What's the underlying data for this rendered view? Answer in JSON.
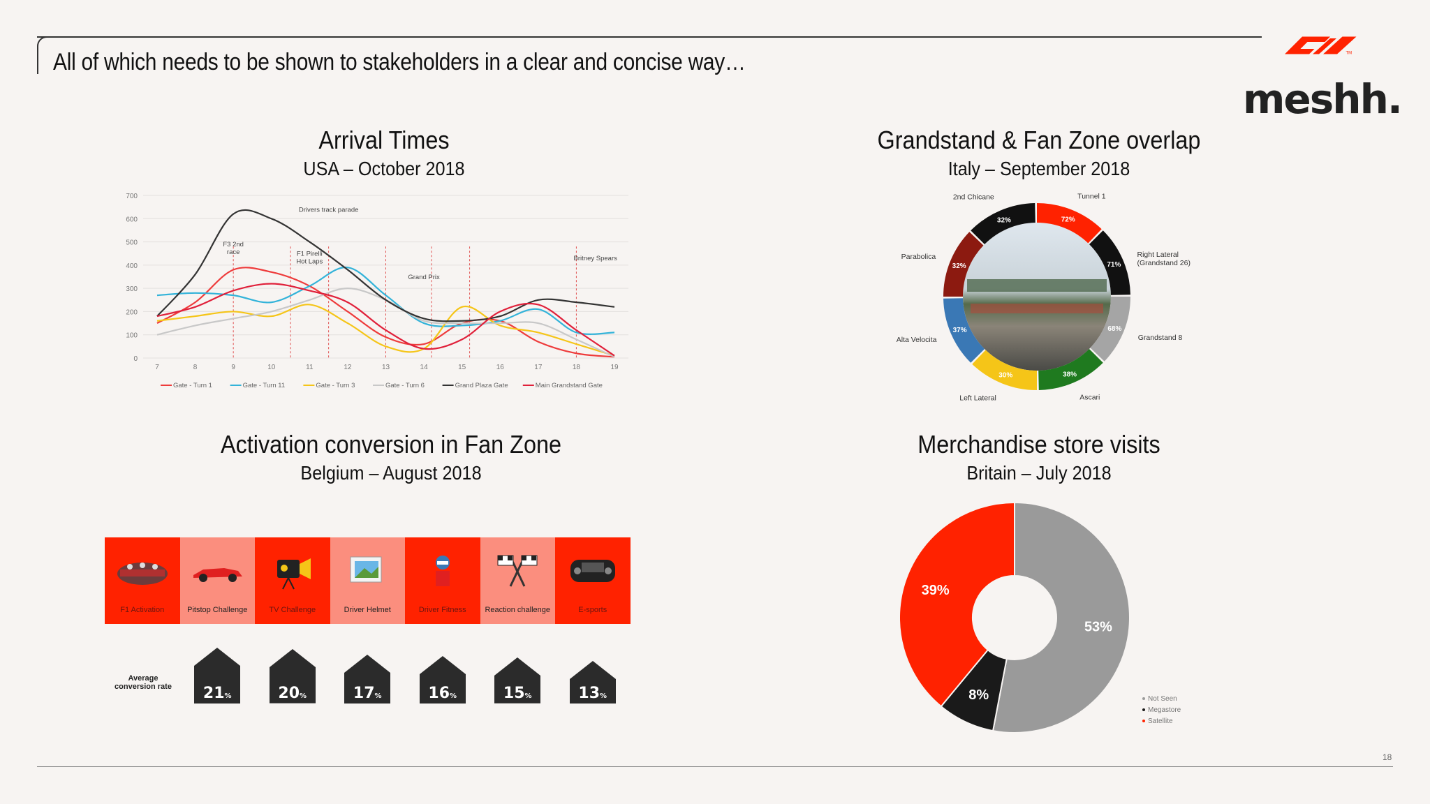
{
  "slide": {
    "title": "All of which needs to be shown to stakeholders in a clear and concise way…",
    "page_number": "18",
    "brand_text": "meshh.",
    "brand_tm": "TM"
  },
  "colors": {
    "accent_red": "#ff2a00",
    "light_red": "#fb8e7e",
    "dark": "#2b2b2b",
    "grey": "#a3a3a3",
    "background": "#f7f4f2"
  },
  "chart_data": [
    {
      "type": "line",
      "title": "Arrival Times",
      "subtitle": "USA – October 2018",
      "x": [
        7,
        8,
        9,
        10,
        11,
        12,
        13,
        14,
        15,
        16,
        17,
        18,
        19
      ],
      "ylim": [
        0,
        700
      ],
      "yticks": [
        0,
        100,
        200,
        300,
        400,
        500,
        600,
        700
      ],
      "grid": true,
      "series": [
        {
          "name": "Gate - Turn 1",
          "color": "#ee3b3b",
          "values": [
            150,
            240,
            380,
            370,
            310,
            200,
            90,
            60,
            150,
            160,
            70,
            20,
            5
          ]
        },
        {
          "name": "Gate - Turn 11",
          "color": "#33b3d9",
          "values": [
            270,
            280,
            270,
            240,
            310,
            390,
            270,
            150,
            140,
            160,
            210,
            110,
            110
          ]
        },
        {
          "name": "Gate - Turn 3",
          "color": "#f5c518",
          "values": [
            160,
            180,
            200,
            180,
            230,
            150,
            50,
            40,
            220,
            140,
            110,
            60,
            10
          ]
        },
        {
          "name": "Gate - Turn 6",
          "color": "#c8c8c8",
          "values": [
            100,
            140,
            170,
            200,
            250,
            300,
            250,
            160,
            150,
            150,
            150,
            80,
            5
          ]
        },
        {
          "name": "Grand Plaza Gate",
          "color": "#333333",
          "values": [
            180,
            360,
            620,
            600,
            500,
            380,
            250,
            170,
            160,
            180,
            250,
            240,
            220
          ]
        },
        {
          "name": "Main Grandstand Gate",
          "color": "#e0203a",
          "values": [
            180,
            220,
            290,
            320,
            290,
            240,
            120,
            40,
            80,
            200,
            230,
            120,
            10
          ]
        }
      ],
      "annotations": [
        {
          "text": "Drivers track parade",
          "x": 11.5,
          "y": 630
        },
        {
          "text": "F3 2nd race",
          "x": 9,
          "y": 480
        },
        {
          "text": "F1 Pirelli Hot Laps",
          "x": 11,
          "y": 440
        },
        {
          "text": "Grand Prix",
          "x": 14,
          "y": 340
        },
        {
          "text": "Britney Spears",
          "x": 18.5,
          "y": 420
        }
      ],
      "event_lines_x": [
        9,
        10.5,
        11.5,
        13,
        14.2,
        15.2,
        18
      ]
    },
    {
      "type": "pie",
      "title": "Grandstand & Fan Zone overlap",
      "subtitle": "Italy – September 2018",
      "segments": [
        {
          "label": "Tunnel 1",
          "value": 72,
          "display": "72%",
          "color": "#ff2200"
        },
        {
          "label": "Right Lateral (Grandstand 26)",
          "value": 71,
          "display": "71%",
          "color": "#111111"
        },
        {
          "label": "Grandstand 8",
          "value": 68,
          "display": "68%",
          "color": "#a5a5a5"
        },
        {
          "label": "Ascari",
          "value": 38,
          "display": "38%",
          "color": "#1f7a1f"
        },
        {
          "label": "Left Lateral",
          "value": 30,
          "display": "30%",
          "color": "#f5c518"
        },
        {
          "label": "Alta Velocita",
          "value": 37,
          "display": "37%",
          "color": "#3a78b5"
        },
        {
          "label": "Parabolica",
          "value": 32,
          "display": "32%",
          "color": "#8c1a10"
        },
        {
          "label": "2nd Chicane",
          "value": 32,
          "display": "32%",
          "color": "#111111"
        }
      ]
    },
    {
      "type": "table",
      "title": "Activation conversion in Fan Zone",
      "subtitle": "Belgium – August 2018",
      "row_label": "Average conversion rate",
      "categories": [
        "F1 Activation",
        "Pitstop Challenge",
        "TV Challenge",
        "Driver Helmet",
        "Driver Fitness",
        "Reaction challenge",
        "E-sports"
      ],
      "values": [
        null,
        21,
        20,
        17,
        16,
        15,
        13
      ],
      "value_labels": [
        "",
        "21",
        "20",
        "17",
        "16",
        "15",
        "13"
      ],
      "unit": "%"
    },
    {
      "type": "pie",
      "title": "Merchandise store visits",
      "subtitle": "Britain – July 2018",
      "legend_position": "bottom-right",
      "segments": [
        {
          "label": "Not Seen",
          "value": 53,
          "display": "53%",
          "color": "#9a9a9a"
        },
        {
          "label": "Megastore",
          "value": 8,
          "display": "8%",
          "color": "#1a1a1a"
        },
        {
          "label": "Satellite",
          "value": 39,
          "display": "39%",
          "color": "#ff2200"
        }
      ]
    }
  ]
}
